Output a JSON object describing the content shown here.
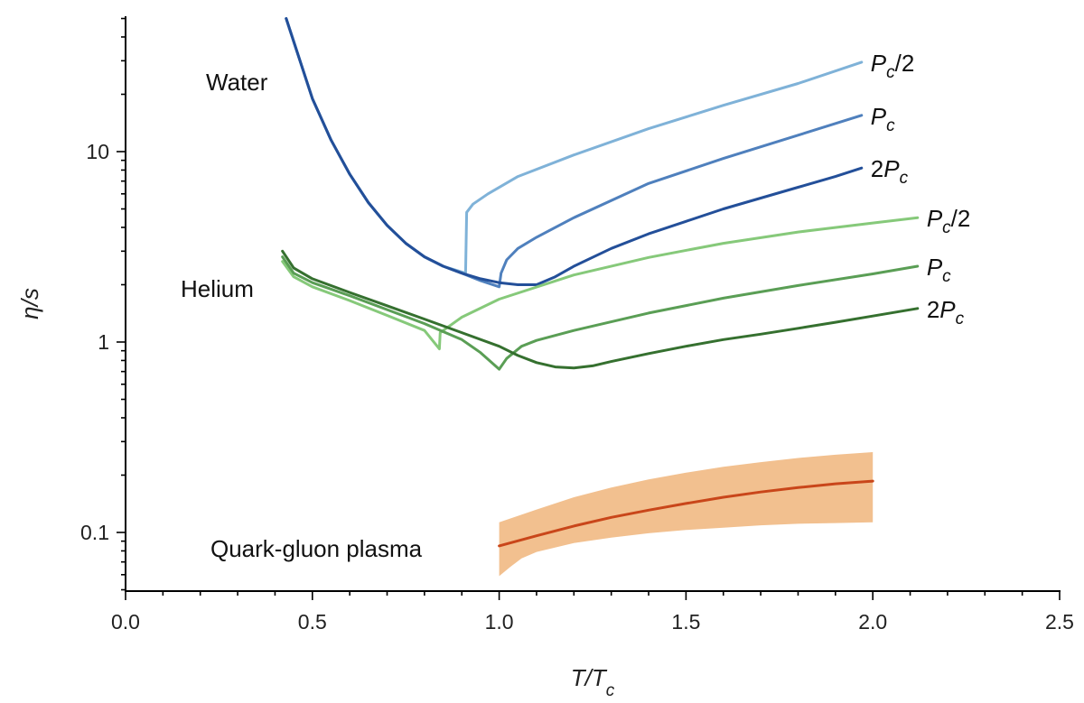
{
  "chart_data": {
    "type": "line",
    "xlabel": "T/T",
    "xlabel_sub": "c",
    "ylabel": "η/s",
    "xlim": [
      0.0,
      2.5
    ],
    "ylim": [
      0.05,
      50
    ],
    "yscale": "log",
    "grid": false,
    "x_ticks": [
      "0.0",
      "0.5",
      "1.0",
      "1.5",
      "2.0",
      "2.5"
    ],
    "y_ticks": [
      "0.1",
      "1",
      "10"
    ],
    "group_labels": {
      "water": "Water",
      "helium": "Helium",
      "qgp": "Quark-gluon plasma"
    },
    "colors": {
      "water_half": "#7fb2d8",
      "water_pc": "#4f80bd",
      "water_2pc": "#234f99",
      "helium_half": "#86c97a",
      "helium_pc": "#5a9e55",
      "helium_2pc": "#35702f",
      "qgp_line": "#c9461a",
      "qgp_band": "#f2c08f"
    },
    "series": [
      {
        "group": "water",
        "label": "P_c/2",
        "label_main": "P",
        "label_sub": "c",
        "label_suffix": "/2",
        "color_key": "water_half",
        "points": [
          [
            0.43,
            50
          ],
          [
            0.5,
            19
          ],
          [
            0.55,
            11.5
          ],
          [
            0.6,
            7.6
          ],
          [
            0.65,
            5.4
          ],
          [
            0.7,
            4.1
          ],
          [
            0.75,
            3.3
          ],
          [
            0.8,
            2.8
          ],
          [
            0.85,
            2.5
          ],
          [
            0.91,
            2.3
          ],
          [
            0.913,
            4.8
          ],
          [
            0.93,
            5.3
          ],
          [
            0.97,
            6.0
          ],
          [
            1.05,
            7.4
          ],
          [
            1.2,
            9.6
          ],
          [
            1.4,
            13.2
          ],
          [
            1.6,
            17.5
          ],
          [
            1.8,
            22.8
          ],
          [
            1.97,
            29.5
          ]
        ]
      },
      {
        "group": "water",
        "label": "P_c",
        "label_main": "P",
        "label_sub": "c",
        "label_suffix": "",
        "color_key": "water_pc",
        "points": [
          [
            0.43,
            50
          ],
          [
            0.5,
            19
          ],
          [
            0.55,
            11.5
          ],
          [
            0.6,
            7.6
          ],
          [
            0.65,
            5.4
          ],
          [
            0.7,
            4.1
          ],
          [
            0.75,
            3.3
          ],
          [
            0.8,
            2.8
          ],
          [
            0.85,
            2.5
          ],
          [
            0.9,
            2.3
          ],
          [
            0.95,
            2.1
          ],
          [
            1.0,
            1.95
          ],
          [
            1.005,
            2.3
          ],
          [
            1.02,
            2.7
          ],
          [
            1.05,
            3.1
          ],
          [
            1.1,
            3.55
          ],
          [
            1.2,
            4.5
          ],
          [
            1.4,
            6.8
          ],
          [
            1.6,
            9.2
          ],
          [
            1.8,
            12.2
          ],
          [
            1.97,
            15.5
          ]
        ]
      },
      {
        "group": "water",
        "label": "2P_c",
        "label_main": "2P",
        "label_sub": "c",
        "label_suffix": "",
        "color_key": "water_2pc",
        "points": [
          [
            0.43,
            50
          ],
          [
            0.5,
            19
          ],
          [
            0.55,
            11.5
          ],
          [
            0.6,
            7.6
          ],
          [
            0.65,
            5.4
          ],
          [
            0.7,
            4.1
          ],
          [
            0.75,
            3.3
          ],
          [
            0.8,
            2.8
          ],
          [
            0.85,
            2.5
          ],
          [
            0.9,
            2.3
          ],
          [
            0.95,
            2.15
          ],
          [
            1.0,
            2.05
          ],
          [
            1.05,
            2.0
          ],
          [
            1.1,
            2.0
          ],
          [
            1.15,
            2.2
          ],
          [
            1.2,
            2.5
          ],
          [
            1.3,
            3.1
          ],
          [
            1.4,
            3.7
          ],
          [
            1.5,
            4.3
          ],
          [
            1.6,
            5.0
          ],
          [
            1.7,
            5.7
          ],
          [
            1.8,
            6.5
          ],
          [
            1.9,
            7.4
          ],
          [
            1.97,
            8.2
          ]
        ]
      },
      {
        "group": "helium",
        "label": "P_c/2",
        "label_main": "P",
        "label_sub": "c",
        "label_suffix": "/2",
        "color_key": "helium_half",
        "points": [
          [
            0.42,
            2.65
          ],
          [
            0.45,
            2.2
          ],
          [
            0.5,
            1.95
          ],
          [
            0.6,
            1.65
          ],
          [
            0.7,
            1.38
          ],
          [
            0.8,
            1.15
          ],
          [
            0.84,
            0.92
          ],
          [
            0.842,
            1.12
          ],
          [
            0.9,
            1.35
          ],
          [
            1.0,
            1.68
          ],
          [
            1.2,
            2.25
          ],
          [
            1.4,
            2.78
          ],
          [
            1.6,
            3.3
          ],
          [
            1.8,
            3.78
          ],
          [
            2.0,
            4.22
          ],
          [
            2.12,
            4.5
          ]
        ]
      },
      {
        "group": "helium",
        "label": "P_c",
        "label_main": "P",
        "label_sub": "c",
        "label_suffix": "",
        "color_key": "helium_pc",
        "points": [
          [
            0.42,
            2.8
          ],
          [
            0.45,
            2.3
          ],
          [
            0.5,
            2.05
          ],
          [
            0.6,
            1.75
          ],
          [
            0.7,
            1.48
          ],
          [
            0.8,
            1.25
          ],
          [
            0.9,
            1.03
          ],
          [
            0.95,
            0.88
          ],
          [
            1.0,
            0.72
          ],
          [
            1.02,
            0.82
          ],
          [
            1.06,
            0.95
          ],
          [
            1.1,
            1.02
          ],
          [
            1.2,
            1.15
          ],
          [
            1.4,
            1.42
          ],
          [
            1.6,
            1.7
          ],
          [
            1.8,
            1.98
          ],
          [
            2.0,
            2.28
          ],
          [
            2.12,
            2.5
          ]
        ]
      },
      {
        "group": "helium",
        "label": "2P_c",
        "label_main": "2P",
        "label_sub": "c",
        "label_suffix": "",
        "color_key": "helium_2pc",
        "points": [
          [
            0.42,
            3.0
          ],
          [
            0.45,
            2.45
          ],
          [
            0.5,
            2.15
          ],
          [
            0.6,
            1.82
          ],
          [
            0.7,
            1.55
          ],
          [
            0.8,
            1.32
          ],
          [
            0.9,
            1.12
          ],
          [
            1.0,
            0.95
          ],
          [
            1.05,
            0.85
          ],
          [
            1.1,
            0.78
          ],
          [
            1.15,
            0.74
          ],
          [
            1.2,
            0.73
          ],
          [
            1.25,
            0.75
          ],
          [
            1.3,
            0.79
          ],
          [
            1.4,
            0.87
          ],
          [
            1.5,
            0.95
          ],
          [
            1.6,
            1.03
          ],
          [
            1.7,
            1.1
          ],
          [
            1.8,
            1.18
          ],
          [
            1.9,
            1.27
          ],
          [
            2.0,
            1.37
          ],
          [
            2.12,
            1.5
          ]
        ]
      }
    ],
    "qgp": {
      "line": [
        [
          1.0,
          0.085
        ],
        [
          1.1,
          0.096
        ],
        [
          1.2,
          0.108
        ],
        [
          1.3,
          0.12
        ],
        [
          1.4,
          0.131
        ],
        [
          1.5,
          0.142
        ],
        [
          1.6,
          0.153
        ],
        [
          1.7,
          0.163
        ],
        [
          1.8,
          0.172
        ],
        [
          1.9,
          0.18
        ],
        [
          2.0,
          0.186
        ]
      ],
      "upper": [
        [
          1.0,
          0.113
        ],
        [
          1.1,
          0.132
        ],
        [
          1.2,
          0.153
        ],
        [
          1.3,
          0.172
        ],
        [
          1.4,
          0.19
        ],
        [
          1.5,
          0.206
        ],
        [
          1.6,
          0.221
        ],
        [
          1.7,
          0.234
        ],
        [
          1.8,
          0.246
        ],
        [
          1.9,
          0.256
        ],
        [
          2.0,
          0.264
        ]
      ],
      "lower": [
        [
          1.0,
          0.059
        ],
        [
          1.03,
          0.066
        ],
        [
          1.06,
          0.073
        ],
        [
          1.1,
          0.079
        ],
        [
          1.2,
          0.088
        ],
        [
          1.3,
          0.094
        ],
        [
          1.4,
          0.099
        ],
        [
          1.5,
          0.103
        ],
        [
          1.6,
          0.106
        ],
        [
          1.7,
          0.109
        ],
        [
          1.8,
          0.111
        ],
        [
          1.9,
          0.112
        ],
        [
          2.0,
          0.113
        ]
      ]
    }
  }
}
